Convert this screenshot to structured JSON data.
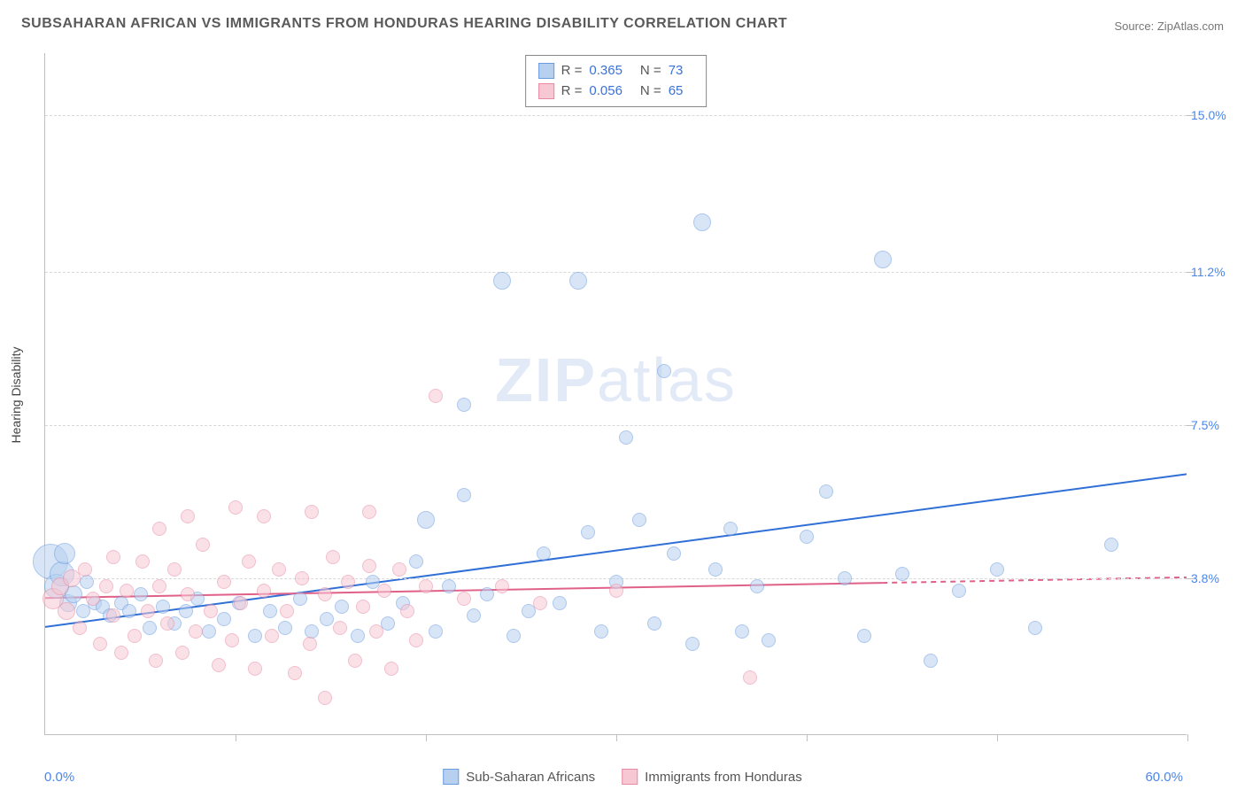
{
  "title": "SUBSAHARAN AFRICAN VS IMMIGRANTS FROM HONDURAS HEARING DISABILITY CORRELATION CHART",
  "source": "Source: ZipAtlas.com",
  "watermark_bold": "ZIP",
  "watermark_light": "atlas",
  "y_axis_label": "Hearing Disability",
  "chart": {
    "type": "scatter",
    "background_color": "#ffffff",
    "grid_color": "#d8d8d8",
    "axis_color": "#bfbfbf",
    "xlim": [
      0.0,
      60.0
    ],
    "ylim": [
      0.0,
      16.5
    ],
    "x_min_label": "0.0%",
    "x_max_label": "60.0%",
    "x_tick_count": 6,
    "y_gridlines": [
      {
        "value": 3.8,
        "label": "3.8%"
      },
      {
        "value": 7.5,
        "label": "7.5%"
      },
      {
        "value": 11.2,
        "label": "11.2%"
      },
      {
        "value": 15.0,
        "label": "15.0%"
      }
    ],
    "title_fontsize": 16,
    "label_fontsize": 14,
    "tick_label_color": "#4a86e8",
    "series": [
      {
        "key": "subsaharan",
        "label": "Sub-Saharan Africans",
        "fill": "#b8d0f0",
        "stroke": "#6a9be0",
        "fill_opacity": 0.55,
        "marker_radius": 8,
        "trend": {
          "y_at_xmin": 2.6,
          "y_at_xmax": 6.3,
          "color": "#2f6fd6",
          "width": 2,
          "dash": null
        },
        "stats": {
          "R": "0.365",
          "N": "73"
        },
        "points": [
          {
            "x": 0.3,
            "y": 4.2,
            "r": 20
          },
          {
            "x": 0.6,
            "y": 3.6,
            "r": 14
          },
          {
            "x": 0.9,
            "y": 3.9,
            "r": 14
          },
          {
            "x": 1.2,
            "y": 3.2,
            "r": 10
          },
          {
            "x": 1.0,
            "y": 4.4,
            "r": 12
          },
          {
            "x": 1.5,
            "y": 3.4,
            "r": 10
          },
          {
            "x": 2.0,
            "y": 3.0,
            "r": 8
          },
          {
            "x": 2.2,
            "y": 3.7,
            "r": 8
          },
          {
            "x": 2.6,
            "y": 3.2,
            "r": 8
          },
          {
            "x": 3.0,
            "y": 3.1,
            "r": 8
          },
          {
            "x": 3.4,
            "y": 2.9,
            "r": 8
          },
          {
            "x": 4.0,
            "y": 3.2,
            "r": 8
          },
          {
            "x": 4.4,
            "y": 3.0,
            "r": 8
          },
          {
            "x": 5.0,
            "y": 3.4,
            "r": 8
          },
          {
            "x": 5.5,
            "y": 2.6,
            "r": 8
          },
          {
            "x": 6.2,
            "y": 3.1,
            "r": 8
          },
          {
            "x": 6.8,
            "y": 2.7,
            "r": 8
          },
          {
            "x": 7.4,
            "y": 3.0,
            "r": 8
          },
          {
            "x": 8.0,
            "y": 3.3,
            "r": 8
          },
          {
            "x": 8.6,
            "y": 2.5,
            "r": 8
          },
          {
            "x": 9.4,
            "y": 2.8,
            "r": 8
          },
          {
            "x": 10.2,
            "y": 3.2,
            "r": 8
          },
          {
            "x": 11.0,
            "y": 2.4,
            "r": 8
          },
          {
            "x": 11.8,
            "y": 3.0,
            "r": 8
          },
          {
            "x": 12.6,
            "y": 2.6,
            "r": 8
          },
          {
            "x": 13.4,
            "y": 3.3,
            "r": 8
          },
          {
            "x": 14.0,
            "y": 2.5,
            "r": 8
          },
          {
            "x": 14.8,
            "y": 2.8,
            "r": 8
          },
          {
            "x": 15.6,
            "y": 3.1,
            "r": 8
          },
          {
            "x": 16.4,
            "y": 2.4,
            "r": 8
          },
          {
            "x": 17.2,
            "y": 3.7,
            "r": 8
          },
          {
            "x": 18.0,
            "y": 2.7,
            "r": 8
          },
          {
            "x": 18.8,
            "y": 3.2,
            "r": 8
          },
          {
            "x": 19.5,
            "y": 4.2,
            "r": 8
          },
          {
            "x": 20.0,
            "y": 5.2,
            "r": 10
          },
          {
            "x": 20.5,
            "y": 2.5,
            "r": 8
          },
          {
            "x": 21.2,
            "y": 3.6,
            "r": 8
          },
          {
            "x": 22.0,
            "y": 5.8,
            "r": 8
          },
          {
            "x": 22.0,
            "y": 8.0,
            "r": 8
          },
          {
            "x": 22.5,
            "y": 2.9,
            "r": 8
          },
          {
            "x": 23.2,
            "y": 3.4,
            "r": 8
          },
          {
            "x": 24.0,
            "y": 11.0,
            "r": 10
          },
          {
            "x": 24.6,
            "y": 2.4,
            "r": 8
          },
          {
            "x": 25.4,
            "y": 3.0,
            "r": 8
          },
          {
            "x": 26.2,
            "y": 4.4,
            "r": 8
          },
          {
            "x": 27.0,
            "y": 3.2,
            "r": 8
          },
          {
            "x": 28.0,
            "y": 11.0,
            "r": 10
          },
          {
            "x": 28.5,
            "y": 4.9,
            "r": 8
          },
          {
            "x": 29.2,
            "y": 2.5,
            "r": 8
          },
          {
            "x": 30.0,
            "y": 3.7,
            "r": 8
          },
          {
            "x": 30.5,
            "y": 7.2,
            "r": 8
          },
          {
            "x": 31.2,
            "y": 5.2,
            "r": 8
          },
          {
            "x": 32.0,
            "y": 2.7,
            "r": 8
          },
          {
            "x": 32.5,
            "y": 8.8,
            "r": 8
          },
          {
            "x": 33.0,
            "y": 4.4,
            "r": 8
          },
          {
            "x": 34.0,
            "y": 2.2,
            "r": 8
          },
          {
            "x": 34.5,
            "y": 12.4,
            "r": 10
          },
          {
            "x": 35.2,
            "y": 4.0,
            "r": 8
          },
          {
            "x": 36.0,
            "y": 5.0,
            "r": 8
          },
          {
            "x": 36.6,
            "y": 2.5,
            "r": 8
          },
          {
            "x": 37.4,
            "y": 3.6,
            "r": 8
          },
          {
            "x": 38.0,
            "y": 2.3,
            "r": 8
          },
          {
            "x": 40.0,
            "y": 4.8,
            "r": 8
          },
          {
            "x": 41.0,
            "y": 5.9,
            "r": 8
          },
          {
            "x": 42.0,
            "y": 3.8,
            "r": 8
          },
          {
            "x": 43.0,
            "y": 2.4,
            "r": 8
          },
          {
            "x": 44.0,
            "y": 11.5,
            "r": 10
          },
          {
            "x": 45.0,
            "y": 3.9,
            "r": 8
          },
          {
            "x": 46.5,
            "y": 1.8,
            "r": 8
          },
          {
            "x": 48.0,
            "y": 3.5,
            "r": 8
          },
          {
            "x": 50.0,
            "y": 4.0,
            "r": 8
          },
          {
            "x": 52.0,
            "y": 2.6,
            "r": 8
          },
          {
            "x": 56.0,
            "y": 4.6,
            "r": 8
          }
        ]
      },
      {
        "key": "honduras",
        "label": "Immigrants from Honduras",
        "fill": "#f7c8d4",
        "stroke": "#e88aa3",
        "fill_opacity": 0.55,
        "marker_radius": 8,
        "trend": {
          "y_at_xmin": 3.3,
          "y_at_xmax": 3.8,
          "color": "#e06088",
          "width": 2,
          "dash_after_x": 44.0
        },
        "stats": {
          "R": "0.056",
          "N": "65"
        },
        "points": [
          {
            "x": 0.4,
            "y": 3.3,
            "r": 12
          },
          {
            "x": 0.8,
            "y": 3.6,
            "r": 10
          },
          {
            "x": 1.1,
            "y": 3.0,
            "r": 10
          },
          {
            "x": 1.4,
            "y": 3.8,
            "r": 10
          },
          {
            "x": 1.8,
            "y": 2.6,
            "r": 8
          },
          {
            "x": 2.1,
            "y": 4.0,
            "r": 8
          },
          {
            "x": 2.5,
            "y": 3.3,
            "r": 8
          },
          {
            "x": 2.9,
            "y": 2.2,
            "r": 8
          },
          {
            "x": 3.2,
            "y": 3.6,
            "r": 8
          },
          {
            "x": 3.6,
            "y": 2.9,
            "r": 8
          },
          {
            "x": 3.6,
            "y": 4.3,
            "r": 8
          },
          {
            "x": 4.0,
            "y": 2.0,
            "r": 8
          },
          {
            "x": 4.3,
            "y": 3.5,
            "r": 8
          },
          {
            "x": 4.7,
            "y": 2.4,
            "r": 8
          },
          {
            "x": 5.1,
            "y": 4.2,
            "r": 8
          },
          {
            "x": 5.4,
            "y": 3.0,
            "r": 8
          },
          {
            "x": 5.8,
            "y": 1.8,
            "r": 8
          },
          {
            "x": 6.0,
            "y": 3.6,
            "r": 8
          },
          {
            "x": 6.0,
            "y": 5.0,
            "r": 8
          },
          {
            "x": 6.4,
            "y": 2.7,
            "r": 8
          },
          {
            "x": 6.8,
            "y": 4.0,
            "r": 8
          },
          {
            "x": 7.2,
            "y": 2.0,
            "r": 8
          },
          {
            "x": 7.5,
            "y": 3.4,
            "r": 8
          },
          {
            "x": 7.5,
            "y": 5.3,
            "r": 8
          },
          {
            "x": 7.9,
            "y": 2.5,
            "r": 8
          },
          {
            "x": 8.3,
            "y": 4.6,
            "r": 8
          },
          {
            "x": 8.7,
            "y": 3.0,
            "r": 8
          },
          {
            "x": 9.1,
            "y": 1.7,
            "r": 8
          },
          {
            "x": 9.4,
            "y": 3.7,
            "r": 8
          },
          {
            "x": 9.8,
            "y": 2.3,
            "r": 8
          },
          {
            "x": 10.0,
            "y": 5.5,
            "r": 8
          },
          {
            "x": 10.3,
            "y": 3.2,
            "r": 8
          },
          {
            "x": 10.7,
            "y": 4.2,
            "r": 8
          },
          {
            "x": 11.0,
            "y": 1.6,
            "r": 8
          },
          {
            "x": 11.5,
            "y": 5.3,
            "r": 8
          },
          {
            "x": 11.5,
            "y": 3.5,
            "r": 8
          },
          {
            "x": 11.9,
            "y": 2.4,
            "r": 8
          },
          {
            "x": 12.3,
            "y": 4.0,
            "r": 8
          },
          {
            "x": 12.7,
            "y": 3.0,
            "r": 8
          },
          {
            "x": 13.1,
            "y": 1.5,
            "r": 8
          },
          {
            "x": 13.5,
            "y": 3.8,
            "r": 8
          },
          {
            "x": 13.9,
            "y": 2.2,
            "r": 8
          },
          {
            "x": 14.0,
            "y": 5.4,
            "r": 8
          },
          {
            "x": 14.7,
            "y": 3.4,
            "r": 8
          },
          {
            "x": 14.7,
            "y": 0.9,
            "r": 8
          },
          {
            "x": 15.1,
            "y": 4.3,
            "r": 8
          },
          {
            "x": 15.5,
            "y": 2.6,
            "r": 8
          },
          {
            "x": 15.9,
            "y": 3.7,
            "r": 8
          },
          {
            "x": 16.3,
            "y": 1.8,
            "r": 8
          },
          {
            "x": 16.7,
            "y": 3.1,
            "r": 8
          },
          {
            "x": 17.0,
            "y": 4.1,
            "r": 8
          },
          {
            "x": 17.0,
            "y": 5.4,
            "r": 8
          },
          {
            "x": 17.4,
            "y": 2.5,
            "r": 8
          },
          {
            "x": 17.8,
            "y": 3.5,
            "r": 8
          },
          {
            "x": 18.2,
            "y": 1.6,
            "r": 8
          },
          {
            "x": 18.6,
            "y": 4.0,
            "r": 8
          },
          {
            "x": 19.0,
            "y": 3.0,
            "r": 8
          },
          {
            "x": 19.5,
            "y": 2.3,
            "r": 8
          },
          {
            "x": 20.0,
            "y": 3.6,
            "r": 8
          },
          {
            "x": 20.5,
            "y": 8.2,
            "r": 8
          },
          {
            "x": 22.0,
            "y": 3.3,
            "r": 8
          },
          {
            "x": 24.0,
            "y": 3.6,
            "r": 8
          },
          {
            "x": 26.0,
            "y": 3.2,
            "r": 8
          },
          {
            "x": 30.0,
            "y": 3.5,
            "r": 8
          },
          {
            "x": 37.0,
            "y": 1.4,
            "r": 8
          }
        ]
      }
    ]
  },
  "stat_legend": {
    "R_label": "R =",
    "N_label": "N ="
  }
}
